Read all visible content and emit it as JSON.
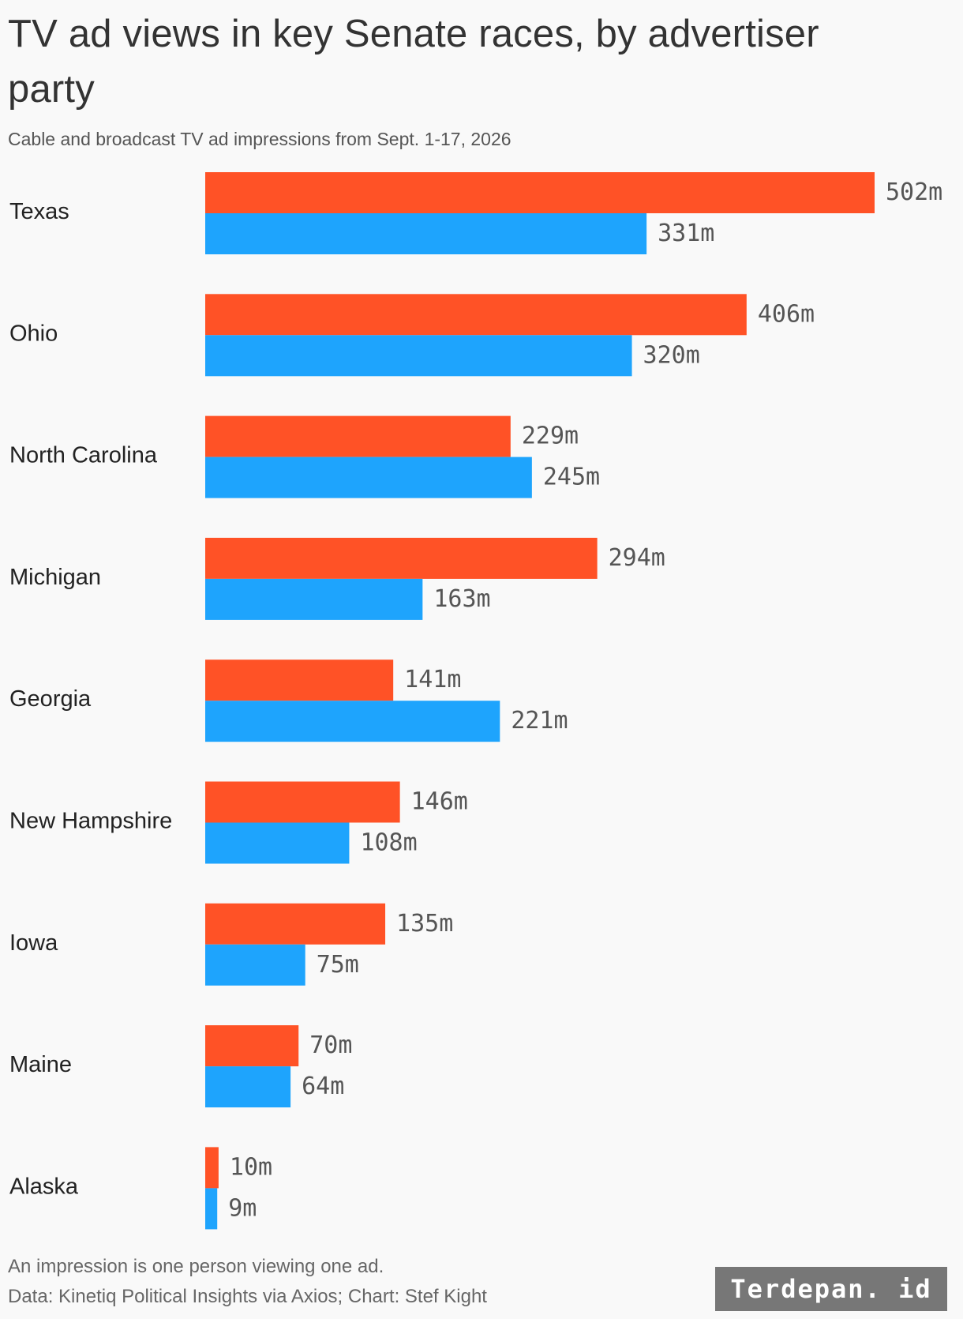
{
  "header": {
    "title": "TV ad views in key Senate races, by advertiser party",
    "subtitle": "Cable and broadcast TV ad impressions from Sept. 1-17, 2026"
  },
  "footer": {
    "note": "An impression is one person viewing one ad.",
    "source": "Data: Kinetiq Political Insights via Axios; Chart: Stef Kight"
  },
  "watermark": "Terdepan. id",
  "colors": {
    "republican": "#ff5226",
    "democrat": "#1ea4fd",
    "label": "#222222",
    "value_label": "#555555"
  },
  "chart_data": {
    "type": "bar",
    "orientation": "horizontal",
    "categories": [
      "Texas",
      "Ohio",
      "North Carolina",
      "Michigan",
      "Georgia",
      "New Hampshire",
      "Iowa",
      "Maine",
      "Alaska"
    ],
    "series": [
      {
        "color": "#ff5226",
        "values": [
          502,
          406,
          229,
          294,
          141,
          146,
          135,
          70,
          10
        ],
        "labels": [
          "502m",
          "406m",
          "229m",
          "294m",
          "141m",
          "146m",
          "135m",
          "70m",
          "10m"
        ]
      },
      {
        "color": "#1ea4fd",
        "values": [
          331,
          320,
          245,
          163,
          221,
          108,
          75,
          64,
          9
        ],
        "labels": [
          "331m",
          "320m",
          "245m",
          "163m",
          "221m",
          "108m",
          "75m",
          "64m",
          "9m"
        ]
      }
    ],
    "xlim": [
      0,
      502
    ],
    "grid": false,
    "legend": "none"
  }
}
